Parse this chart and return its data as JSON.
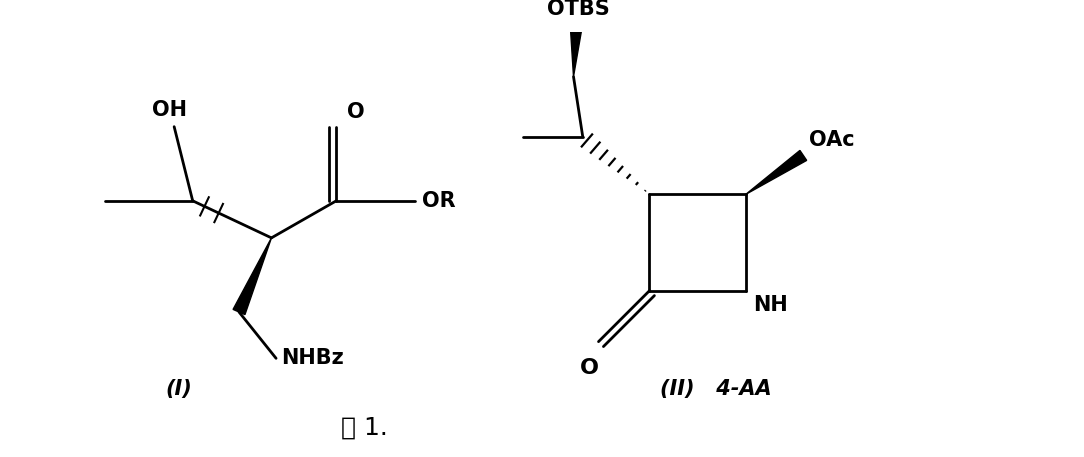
{
  "bg_color": "#ffffff",
  "fig_width": 10.84,
  "fig_height": 4.57,
  "label_I": "(I)",
  "label_II": "(II)   4-AA",
  "caption": "式 1.",
  "font_size_labels": 15,
  "font_size_caption": 18,
  "font_size_atoms": 15
}
